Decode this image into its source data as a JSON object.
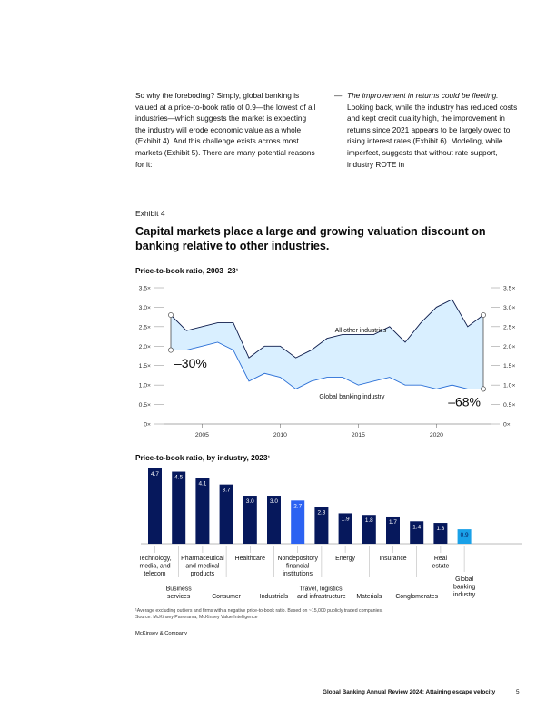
{
  "text": {
    "left_paragraph": "So why the foreboding? Simply, global banking is valued at a price-to-book ratio of 0.9—the lowest of all industries—which suggests the market is expecting the industry will erode economic value as a whole (Exhibit 4). And this challenge exists across most markets (Exhibit 5). There are many potential reasons for it:",
    "right_dash": "—",
    "right_italic": "The improvement in returns could be fleeting.",
    "right_paragraph": "Looking back, while the industry has reduced costs and kept credit quality high, the improvement in returns since 2021 appears to be largely owed to rising interest rates (Exhibit 6). Modeling, while imperfect, suggests that without rate support, industry ROTE in"
  },
  "exhibit": {
    "label": "Exhibit 4",
    "title": "Capital markets place a large and growing valuation discount on banking relative to other industries."
  },
  "chart_data": [
    {
      "type": "area",
      "title": "Price-to-book ratio, 2003–23¹",
      "x": [
        2003,
        2004,
        2005,
        2006,
        2007,
        2008,
        2009,
        2010,
        2011,
        2012,
        2013,
        2014,
        2015,
        2016,
        2017,
        2018,
        2019,
        2020,
        2021,
        2022,
        2023
      ],
      "series": [
        {
          "name": "All other industries",
          "values": [
            2.8,
            2.4,
            2.5,
            2.6,
            2.6,
            1.7,
            2.0,
            2.0,
            1.7,
            1.9,
            2.2,
            2.3,
            2.3,
            2.3,
            2.5,
            2.1,
            2.6,
            3.0,
            3.2,
            2.5,
            2.8
          ]
        },
        {
          "name": "Global banking industry",
          "values": [
            1.9,
            1.9,
            2.0,
            2.1,
            1.9,
            1.1,
            1.3,
            1.2,
            0.9,
            1.1,
            1.2,
            1.2,
            1.0,
            1.1,
            1.2,
            1.0,
            1.0,
            0.9,
            1.0,
            0.9,
            0.9
          ]
        }
      ],
      "xticks": [
        "2005",
        "2010",
        "2015",
        "2020"
      ],
      "yticks": [
        "0×",
        "0.5×",
        "1.0×",
        "1.5×",
        "2.0×",
        "2.5×",
        "3.0×",
        "3.5×"
      ],
      "ylim": [
        0,
        3.5
      ],
      "annotations": [
        "–30%",
        "–68%"
      ],
      "grid": false
    },
    {
      "type": "bar",
      "title": "Price-to-book ratio, by industry, 2023¹",
      "categories": [
        "Technology, media, and telecom",
        "Business services",
        "Pharmaceutical and medical products",
        "Consumer",
        "Healthcare",
        "Industrials",
        "Nondepository financial institutions",
        "Travel, logistics, and infrastructure",
        "Energy",
        "Materials",
        "Insurance",
        "Conglomerates",
        "Real estate",
        "Global banking industry"
      ],
      "values": [
        4.7,
        4.5,
        4.1,
        3.7,
        3.0,
        3.0,
        2.7,
        2.3,
        1.9,
        1.8,
        1.7,
        1.4,
        1.3,
        0.9
      ],
      "value_labels": [
        "4.7",
        "4.5",
        "4.1",
        "3.7",
        "3.0",
        "3.0",
        "2.7",
        "2.3",
        "1.9",
        "1.8",
        "1.7",
        "1.4",
        "1.3",
        "0.9"
      ],
      "ylim": [
        0,
        4.7
      ]
    }
  ],
  "colors": {
    "dark_navy": "#06185c",
    "highlight_blue": "#2b62f2",
    "banking_blue": "#1aa1e8",
    "area_fill": "#d9efff",
    "line": "#0c1a4a"
  },
  "footer": {
    "footnote_line1": "¹Average excluding outliers and firms with a negative price-to-book ratio. Based on ~15,000 publicly traded companies.",
    "footnote_line2": "Source: McKinsey Panorama; McKinsey Value Intelligence",
    "brand": "McKinsey & Company",
    "report_title": "Global Banking Annual Review 2024: Attaining escape velocity",
    "page_number": "5"
  }
}
